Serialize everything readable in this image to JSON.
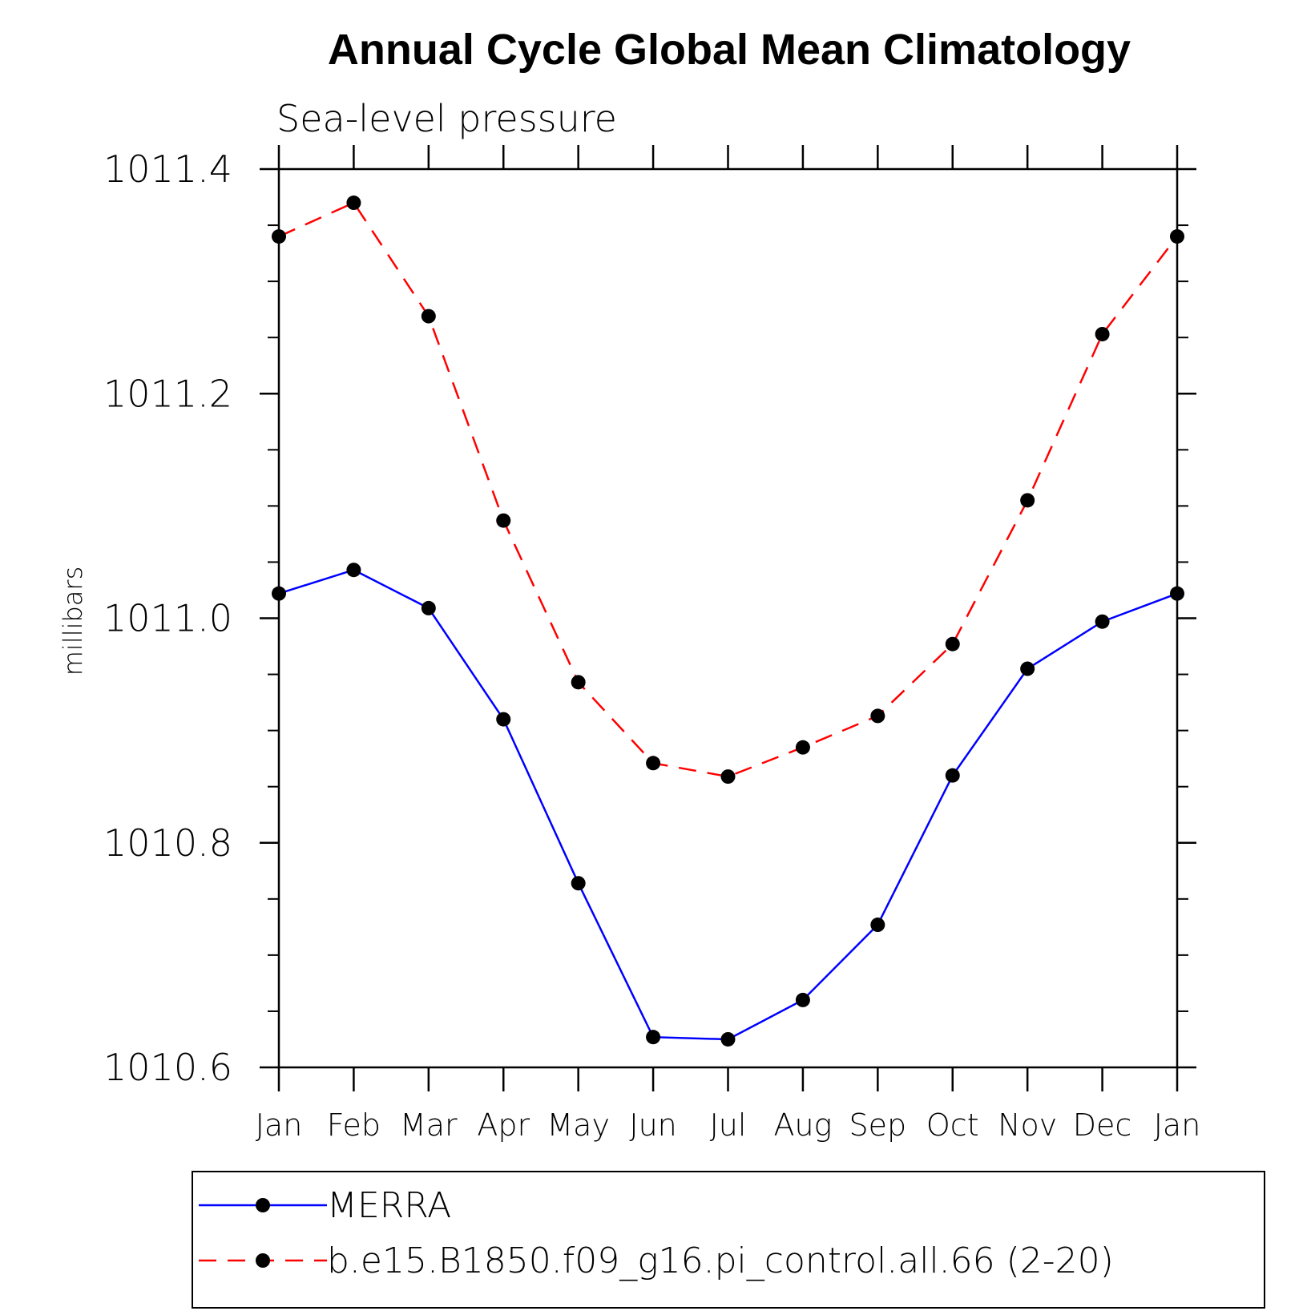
{
  "chart_data": {
    "type": "line",
    "title": "Annual Cycle Global Mean Climatology",
    "subtitle": "Sea-level pressure",
    "xlabel": "",
    "ylabel": "millibars",
    "categories": [
      "Jan",
      "Feb",
      "Mar",
      "Apr",
      "May",
      "Jun",
      "Jul",
      "Aug",
      "Sep",
      "Oct",
      "Nov",
      "Dec",
      "Jan"
    ],
    "ylim": [
      1010.6,
      1011.4
    ],
    "yticks": [
      "1010.6",
      "1010.8",
      "1011.0",
      "1011.2",
      "1011.4"
    ],
    "grid": false,
    "legend_position": "bottom",
    "series": [
      {
        "name": "MERRA",
        "color": "#0000ff",
        "style": "solid",
        "marker": "circle",
        "values": [
          1011.022,
          1011.043,
          1011.009,
          1010.91,
          1010.764,
          1010.627,
          1010.625,
          1010.66,
          1010.727,
          1010.86,
          1010.955,
          1010.997,
          1011.022
        ]
      },
      {
        "name": "b.e15.B1850.f09_g16.pi_control.all.66 (2-20)",
        "color": "#ff0000",
        "style": "dashed",
        "marker": "circle",
        "values": [
          1011.34,
          1011.37,
          1011.269,
          1011.087,
          1010.943,
          1010.871,
          1010.859,
          1010.885,
          1010.913,
          1010.977,
          1011.105,
          1011.253,
          1011.34
        ]
      }
    ]
  }
}
